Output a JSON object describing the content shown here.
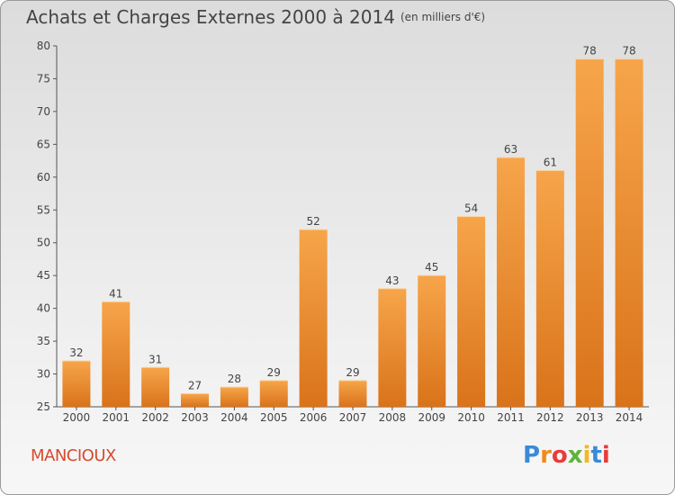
{
  "title": "Achats et Charges Externes 2000 à 2014",
  "unit": "(en milliers d'€)",
  "commune": "MANCIOUX",
  "logo": {
    "letters": [
      "P",
      "r",
      "o",
      "x",
      "i",
      "t",
      "i"
    ],
    "colors": [
      "#3a8ad8",
      "#f08a1c",
      "#e83c3c",
      "#5fb43a",
      "#f2b81f",
      "#3a8ad8",
      "#e83c3c"
    ]
  },
  "colors": {
    "bar_light": "#f7a54a",
    "bar_dark": "#d9731a",
    "text": "#444444"
  },
  "chart_data": {
    "type": "bar",
    "title": "Achats et Charges Externes 2000 à 2014",
    "subtitle": "(en milliers d'€)",
    "xlabel": "",
    "ylabel": "",
    "ylim": [
      25,
      80
    ],
    "yticks": [
      25,
      30,
      35,
      40,
      45,
      50,
      55,
      60,
      65,
      70,
      75,
      80
    ],
    "grid": false,
    "categories": [
      "2000",
      "2001",
      "2002",
      "2003",
      "2004",
      "2005",
      "2006",
      "2007",
      "2008",
      "2009",
      "2010",
      "2011",
      "2012",
      "2013",
      "2014"
    ],
    "values": [
      32,
      41,
      31,
      27,
      28,
      29,
      52,
      29,
      43,
      45,
      54,
      63,
      61,
      78,
      78
    ]
  }
}
